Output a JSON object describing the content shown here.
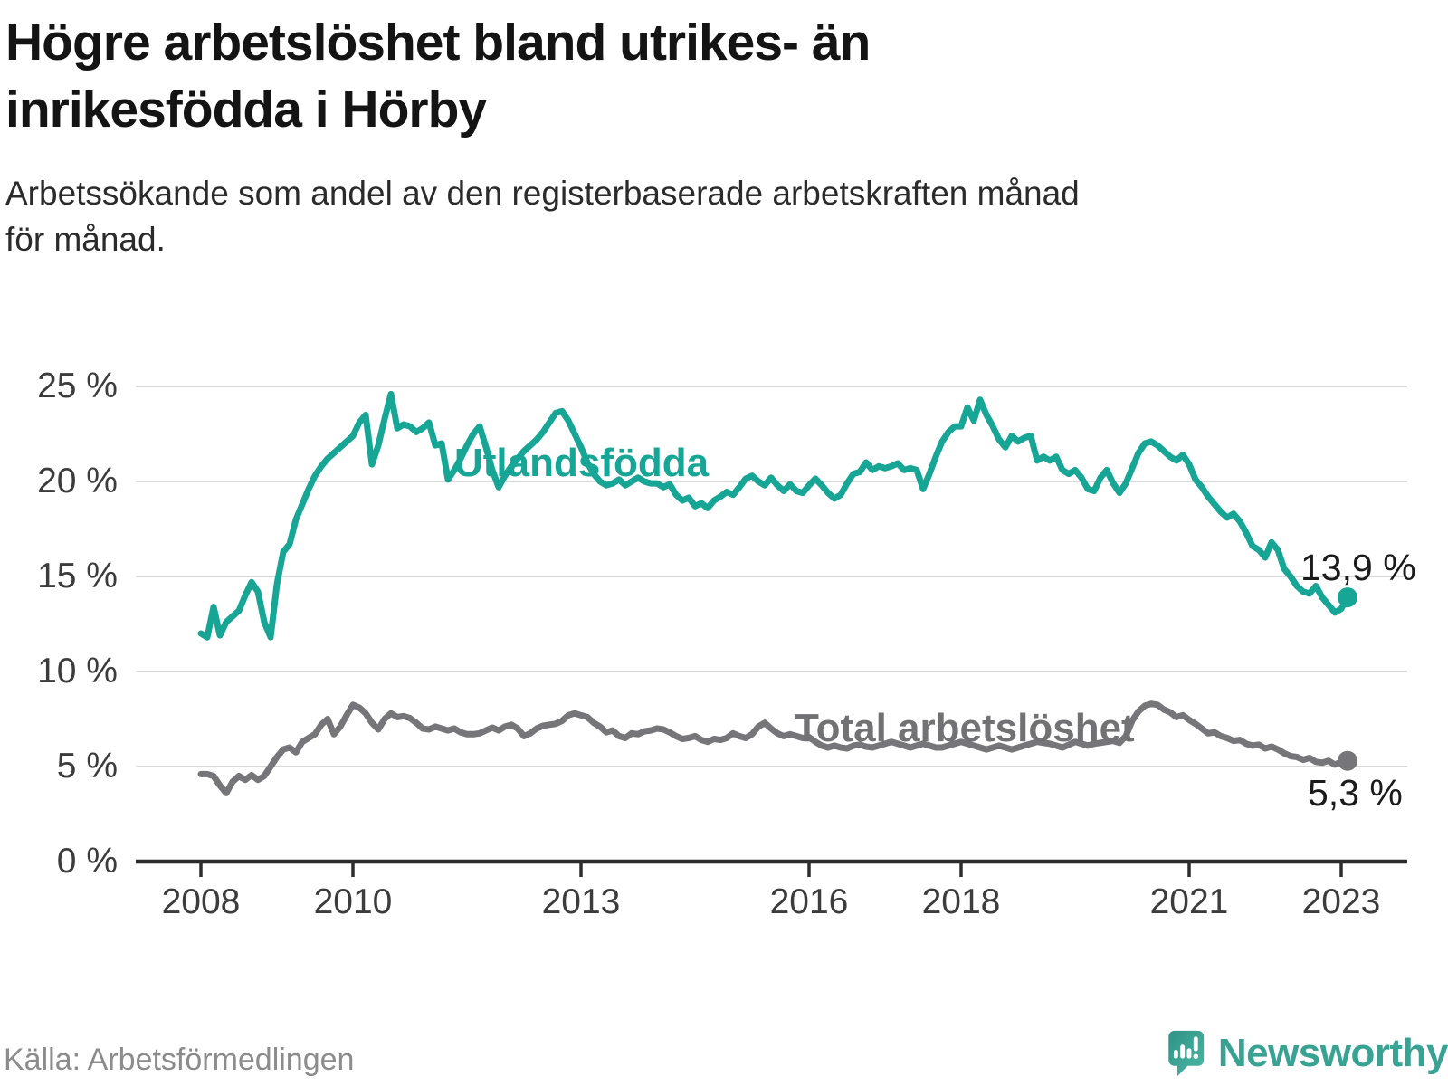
{
  "title_lines": [
    "Högre arbetslöshet bland utrikes- än",
    "inrikesfödda i Hörby"
  ],
  "subtitle_lines": [
    "Arbetssökande som andel av den registerbaserade arbetskraften månad",
    "för månad."
  ],
  "source": "Källa: Arbetsförmedlingen",
  "branding": {
    "logo_text": "Newsworthy",
    "logo_icon": "bar-chart-speech-bubble-icon",
    "logo_color": "#2f9d8d"
  },
  "colors": {
    "foreign_born_line": "#17a695",
    "total_line": "#76767a",
    "gridline": "#d9d9d9",
    "axis": "#2d2d2d",
    "tick_text": "#3c3c3c",
    "value_text": "#1b1b1b"
  },
  "chart_data": {
    "type": "line",
    "title": "Högre arbetslöshet bland utrikes- än inrikesfödda i Hörby",
    "subtitle": "Arbetssökande som andel av den registerbaserade arbetskraften månad för månad.",
    "frequency": "monthly",
    "x_start": "2008-01",
    "x_end": "2023-02",
    "x_tick_labels": [
      "2008",
      "2010",
      "2013",
      "2016",
      "2018",
      "2021",
      "2023"
    ],
    "x_tick_month_index": [
      0,
      24,
      60,
      96,
      120,
      156,
      180
    ],
    "y_tick_labels": [
      "0 %",
      "5 %",
      "10 %",
      "15 %",
      "20 %",
      "25 %"
    ],
    "y_tick_values": [
      0,
      5,
      10,
      15,
      20,
      25
    ],
    "ylim": [
      0,
      25
    ],
    "grid": "horizontal",
    "legend_position": "inline-annotations",
    "series": [
      {
        "name": "Utlandsfödda",
        "color": "#17a695",
        "end_label": "13,9 %",
        "end_value": 13.9,
        "values": [
          12.0,
          11.8,
          13.4,
          11.9,
          12.6,
          12.9,
          13.2,
          14.0,
          14.7,
          14.2,
          12.6,
          11.8,
          14.6,
          16.3,
          16.7,
          18.0,
          18.8,
          19.6,
          20.3,
          20.8,
          21.2,
          21.5,
          21.8,
          22.1,
          22.4,
          23.1,
          23.5,
          20.9,
          21.9,
          23.3,
          24.6,
          22.8,
          23.0,
          22.9,
          22.6,
          22.8,
          23.1,
          21.9,
          22.0,
          20.1,
          20.6,
          21.2,
          21.9,
          22.5,
          22.9,
          21.8,
          20.6,
          19.7,
          20.3,
          20.8,
          21.2,
          21.6,
          21.9,
          22.2,
          22.6,
          23.1,
          23.6,
          23.7,
          23.2,
          22.5,
          21.8,
          21.0,
          20.4,
          20.0,
          19.8,
          19.9,
          20.1,
          19.8,
          20.0,
          20.2,
          20.0,
          19.9,
          19.9,
          19.7,
          19.85,
          19.3,
          19.0,
          19.15,
          18.7,
          18.85,
          18.6,
          19.0,
          19.2,
          19.45,
          19.3,
          19.7,
          20.15,
          20.3,
          20.0,
          19.8,
          20.2,
          19.8,
          19.5,
          19.85,
          19.5,
          19.4,
          19.8,
          20.15,
          19.8,
          19.4,
          19.1,
          19.3,
          19.9,
          20.4,
          20.5,
          21.0,
          20.6,
          20.8,
          20.7,
          20.8,
          20.95,
          20.6,
          20.7,
          20.6,
          19.6,
          20.4,
          21.3,
          22.1,
          22.6,
          22.9,
          22.9,
          23.9,
          23.2,
          24.3,
          23.5,
          22.9,
          22.2,
          21.8,
          22.4,
          22.1,
          22.3,
          22.4,
          21.1,
          21.3,
          21.1,
          21.3,
          20.6,
          20.4,
          20.6,
          20.2,
          19.6,
          19.5,
          20.2,
          20.6,
          19.9,
          19.4,
          19.9,
          20.7,
          21.5,
          22.0,
          22.1,
          21.9,
          21.6,
          21.3,
          21.1,
          21.4,
          20.9,
          20.1,
          19.7,
          19.2,
          18.8,
          18.4,
          18.1,
          18.3,
          17.9,
          17.3,
          16.6,
          16.4,
          16.0,
          16.8,
          16.4,
          15.4,
          15.0,
          14.5,
          14.2,
          14.1,
          14.5,
          13.9,
          13.5,
          13.1,
          13.3,
          13.9
        ]
      },
      {
        "name": "Total arbetslöshet",
        "color": "#76767a",
        "end_label": "5,3 %",
        "end_value": 5.3,
        "values": [
          4.6,
          4.6,
          4.5,
          4.0,
          3.6,
          4.2,
          4.5,
          4.3,
          4.55,
          4.3,
          4.5,
          5.0,
          5.5,
          5.9,
          6.0,
          5.75,
          6.3,
          6.5,
          6.7,
          7.2,
          7.5,
          6.7,
          7.1,
          7.7,
          8.25,
          8.1,
          7.8,
          7.3,
          6.95,
          7.5,
          7.8,
          7.6,
          7.65,
          7.55,
          7.3,
          7.0,
          6.95,
          7.1,
          7.0,
          6.9,
          7.0,
          6.8,
          6.7,
          6.7,
          6.75,
          6.9,
          7.05,
          6.9,
          7.1,
          7.2,
          7.0,
          6.6,
          6.75,
          7.0,
          7.15,
          7.2,
          7.25,
          7.4,
          7.7,
          7.8,
          7.7,
          7.6,
          7.3,
          7.1,
          6.8,
          6.9,
          6.6,
          6.5,
          6.75,
          6.7,
          6.85,
          6.9,
          7.0,
          6.95,
          6.8,
          6.6,
          6.45,
          6.5,
          6.6,
          6.4,
          6.3,
          6.45,
          6.4,
          6.5,
          6.75,
          6.6,
          6.5,
          6.7,
          7.1,
          7.3,
          7.0,
          6.75,
          6.6,
          6.7,
          6.6,
          6.5,
          6.55,
          6.3,
          6.1,
          6.0,
          6.1,
          6.0,
          5.95,
          6.1,
          6.15,
          6.05,
          6.0,
          6.1,
          6.2,
          6.3,
          6.2,
          6.1,
          6.0,
          6.1,
          6.2,
          6.1,
          6.0,
          6.0,
          6.1,
          6.2,
          6.3,
          6.2,
          6.1,
          6.0,
          5.9,
          6.0,
          6.1,
          6.0,
          5.9,
          6.0,
          6.1,
          6.2,
          6.3,
          6.25,
          6.2,
          6.1,
          6.0,
          6.15,
          6.3,
          6.2,
          6.1,
          6.2,
          6.25,
          6.3,
          6.35,
          6.25,
          6.6,
          7.4,
          7.9,
          8.2,
          8.3,
          8.25,
          8.0,
          7.85,
          7.6,
          7.7,
          7.45,
          7.25,
          7.0,
          6.75,
          6.8,
          6.6,
          6.5,
          6.35,
          6.4,
          6.2,
          6.1,
          6.15,
          5.95,
          6.05,
          5.9,
          5.7,
          5.55,
          5.5,
          5.35,
          5.45,
          5.25,
          5.2,
          5.3,
          5.1,
          5.25,
          5.3
        ]
      }
    ]
  }
}
